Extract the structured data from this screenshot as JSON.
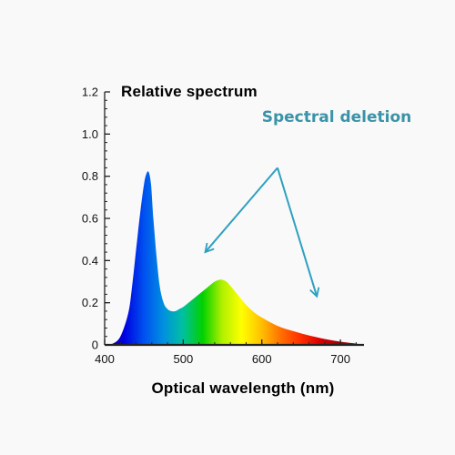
{
  "chart_data": {
    "type": "area",
    "title": "",
    "xlabel": "Optical wavelength (nm)",
    "ylabel": "Relative spectrum",
    "xlim": [
      400,
      730
    ],
    "ylim": [
      0,
      1.2
    ],
    "x_ticks": [
      400,
      500,
      600,
      700
    ],
    "y_ticks": [
      0,
      0.2,
      0.4,
      0.6,
      0.8,
      1.0,
      1.2
    ],
    "y_tick_labels": [
      "0",
      "0.2",
      "0.4",
      "0.6",
      "0.8",
      "1.0",
      "1.2"
    ],
    "grid": false,
    "fill": "visible-spectrum-gradient",
    "series": [
      {
        "x": [
          400,
          410,
          420,
          430,
          435,
          440,
          445,
          450,
          453,
          456,
          459,
          462,
          466,
          470,
          475,
          480,
          485,
          490,
          495,
          500,
          510,
          520,
          530,
          540,
          548,
          555,
          560,
          570,
          580,
          590,
          600,
          620,
          640,
          660,
          680,
          700,
          720,
          730
        ],
        "y": [
          0,
          0.005,
          0.04,
          0.15,
          0.28,
          0.45,
          0.62,
          0.76,
          0.81,
          0.82,
          0.76,
          0.6,
          0.42,
          0.28,
          0.2,
          0.17,
          0.16,
          0.16,
          0.17,
          0.18,
          0.21,
          0.24,
          0.27,
          0.3,
          0.31,
          0.3,
          0.28,
          0.235,
          0.19,
          0.155,
          0.13,
          0.09,
          0.065,
          0.045,
          0.028,
          0.015,
          0.006,
          0
        ]
      }
    ]
  },
  "annotation": {
    "text": "Spectral deletion",
    "color": "#3a93a8",
    "arrow_origin": {
      "x": 620,
      "y": 0.84
    },
    "arrow_targets": [
      {
        "x": 528,
        "y": 0.44
      },
      {
        "x": 670,
        "y": 0.23
      }
    ]
  },
  "colors": {
    "axis": "#222222",
    "arrow": "#2ea0c0",
    "spectrum": [
      "#1a0080",
      "#0000e0",
      "#0050f0",
      "#0090e0",
      "#00c0a0",
      "#00d000",
      "#b0f000",
      "#ffff00",
      "#ffc000",
      "#ff7000",
      "#ff3000",
      "#d80000",
      "#a00000"
    ]
  }
}
